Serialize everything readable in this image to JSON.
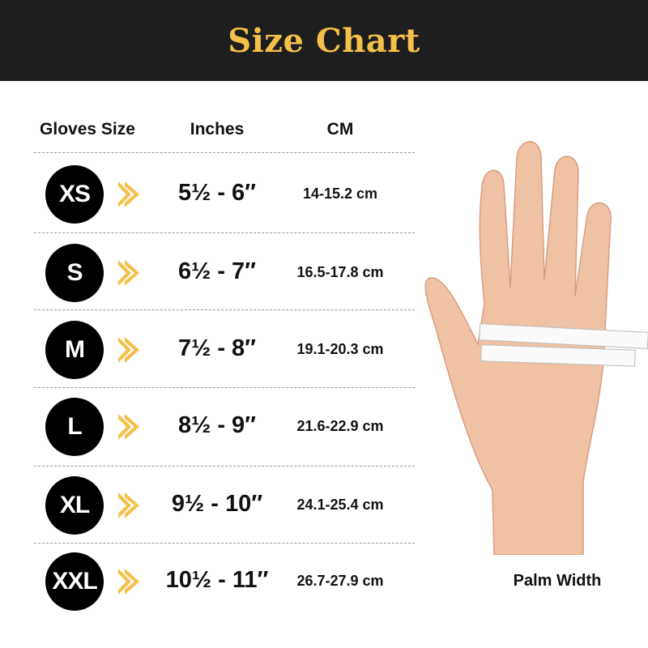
{
  "header": {
    "title": "Size Chart"
  },
  "columns": [
    "Gloves Size",
    "Inches",
    "CM"
  ],
  "rows": [
    {
      "size": "XS",
      "inches": "5½ - 6″",
      "cm": "14-15.2 cm"
    },
    {
      "size": "S",
      "inches": "6½ - 7″",
      "cm": "16.5-17.8 cm"
    },
    {
      "size": "M",
      "inches": "7½ - 8″",
      "cm": "19.1-20.3 cm"
    },
    {
      "size": "L",
      "inches": "8½ - 9″",
      "cm": "21.6-22.9 cm"
    },
    {
      "size": "XL",
      "inches": "9½ - 10″",
      "cm": "24.1-25.4 cm"
    },
    {
      "size": "XXL",
      "inches": "10½ - 11″",
      "cm": "26.7-27.9 cm"
    }
  ],
  "hand_label": "Palm Width",
  "colors": {
    "header_bg": "#1e1e1e",
    "accent": "#f4c04a",
    "badge": "#000000"
  }
}
